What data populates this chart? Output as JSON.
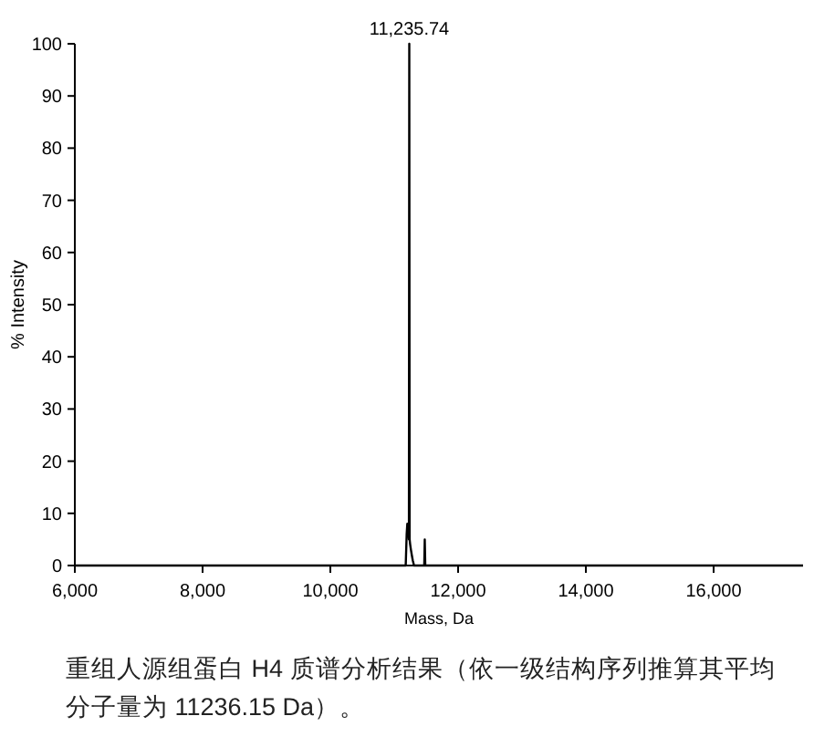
{
  "chart_data": {
    "type": "line",
    "xlabel": "Mass, Da",
    "ylabel": "% Intensity",
    "x": [
      6000,
      11100,
      11180,
      11195,
      11205,
      11215,
      11225,
      11230,
      11235.74,
      11241,
      11250,
      11262,
      11275,
      11290,
      11310,
      11460,
      11470,
      11478,
      11486,
      11495,
      17400
    ],
    "series": [
      {
        "color": "#000000",
        "values": [
          0,
          0,
          0,
          6,
          8,
          7,
          6,
          5,
          100,
          5,
          4,
          3,
          2,
          1,
          0,
          0,
          0,
          5,
          0,
          0,
          0
        ]
      }
    ],
    "xlim": [
      6000,
      17400
    ],
    "ylim": [
      0,
      100
    ],
    "xticks": [
      {
        "value": 6000,
        "label": "6,000"
      },
      {
        "value": 8000,
        "label": "8,000"
      },
      {
        "value": 10000,
        "label": "10,000"
      },
      {
        "value": 12000,
        "label": "12,000"
      },
      {
        "value": 14000,
        "label": "14,000"
      },
      {
        "value": 16000,
        "label": "16,000"
      }
    ],
    "yticks": [
      0,
      10,
      20,
      30,
      40,
      50,
      60,
      70,
      80,
      90,
      100
    ],
    "annotations": [
      {
        "text": "11,235.74",
        "x": 11235.74,
        "y": 100
      },
      "重组人源组蛋白 H4 质谱分析结果（依一级结构序列推算其平均分子量为 11236.15 Da）。"
    ]
  }
}
